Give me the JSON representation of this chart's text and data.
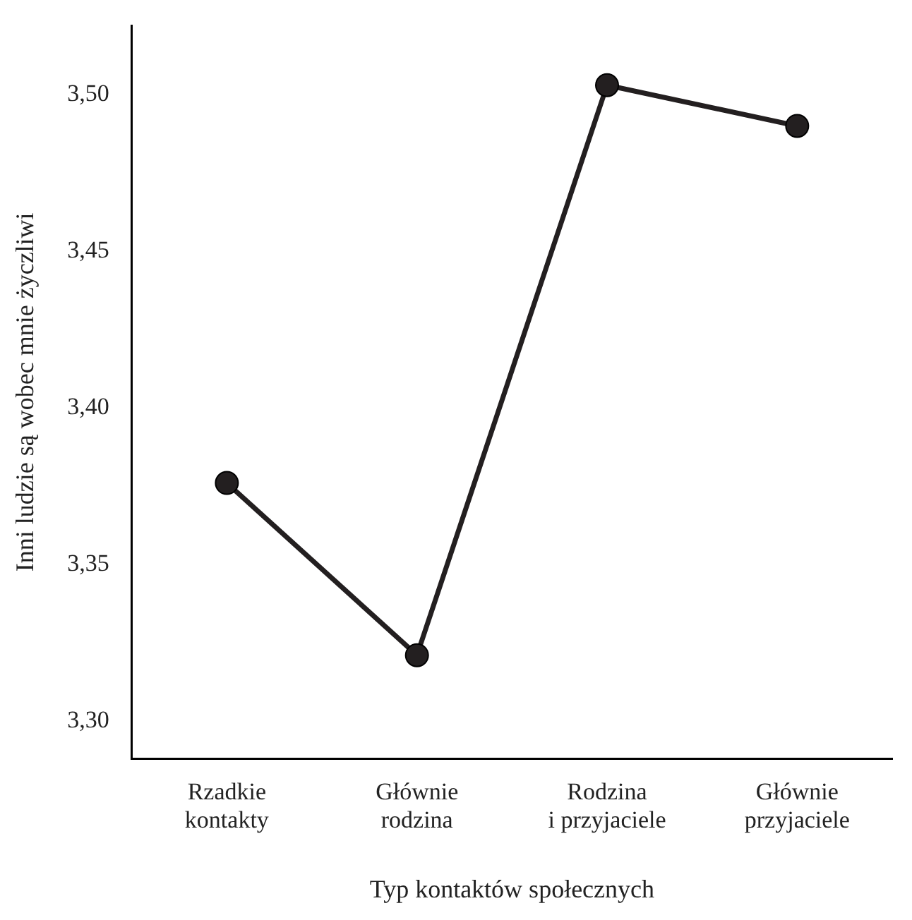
{
  "chart_data": {
    "type": "line",
    "xlabel": "Typ kontaktów społecznych",
    "ylabel": "Inni ludzie są wobec mnie życzliwi",
    "categories": [
      "Rzadkie\nkontakty",
      "Głównie\nrodzina",
      "Rodzina\ni przyjaciele",
      "Głównie\nprzyjaciele"
    ],
    "series": [
      {
        "color": "#231f20",
        "values": [
          3.376,
          3.321,
          3.503,
          3.49
        ]
      }
    ],
    "ylim": [
      3.288,
      3.522
    ],
    "yticks": [
      {
        "value": 3.3,
        "label": "3,30"
      },
      {
        "value": 3.35,
        "label": "3,35"
      },
      {
        "value": 3.4,
        "label": "3,40"
      },
      {
        "value": 3.45,
        "label": "3,45"
      },
      {
        "value": 3.5,
        "label": "3,50"
      }
    ],
    "grid": false,
    "legend": false,
    "marker": "circle",
    "line_style": "solid"
  }
}
